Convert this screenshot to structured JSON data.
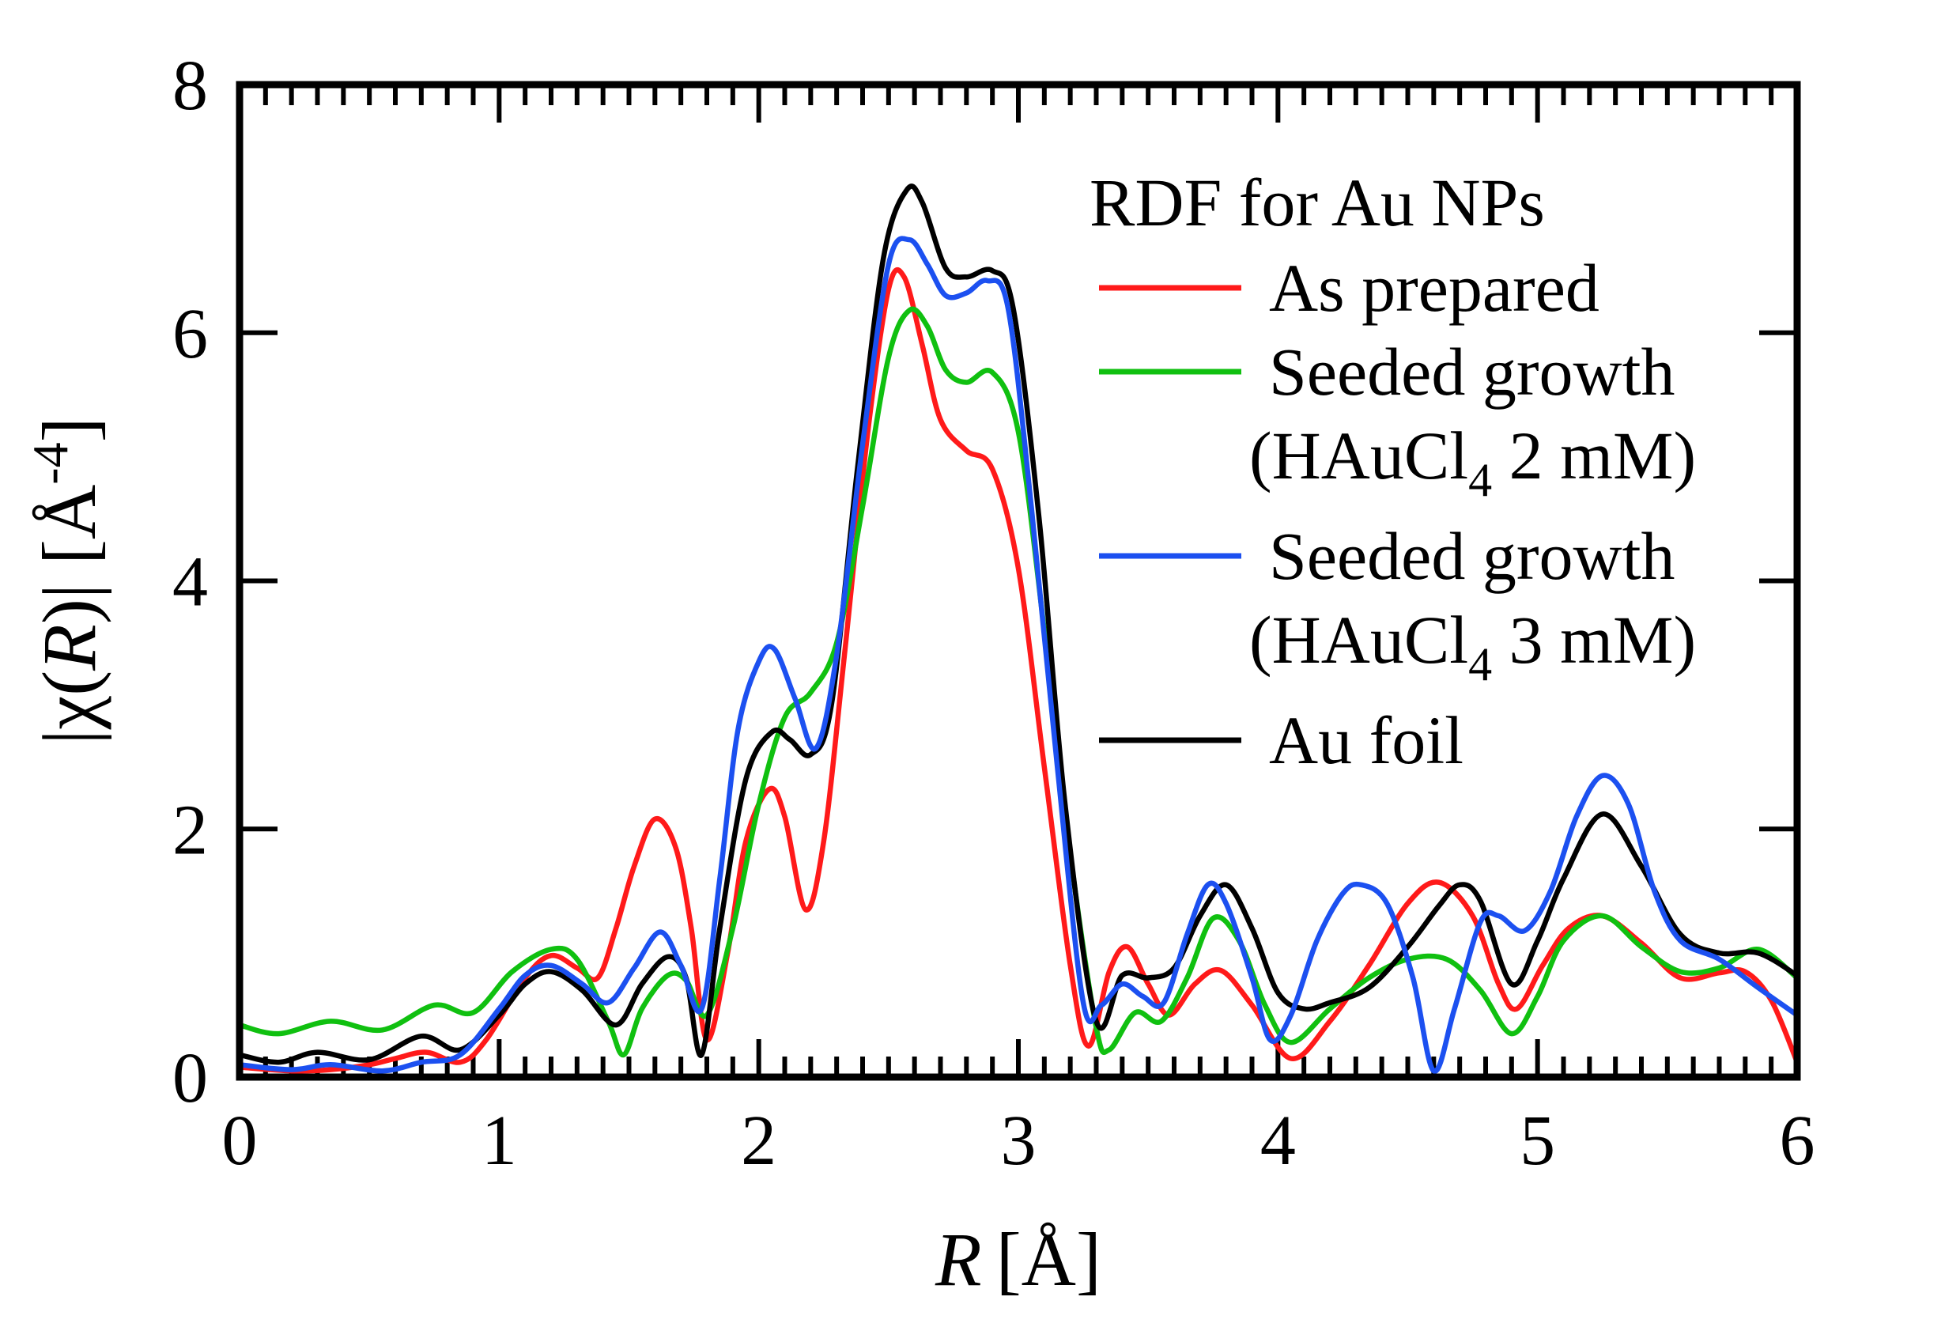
{
  "chart_data": {
    "type": "line",
    "title": "",
    "xlabel_var": "R",
    "xlabel_unit": "[Å]",
    "ylabel_pre": "|χ(",
    "ylabel_var": "R",
    "ylabel_post": ")| [Å",
    "ylabel_exp": "-4",
    "ylabel_close": "]",
    "xlim": [
      0,
      6
    ],
    "ylim": [
      0,
      8
    ],
    "x_ticks": [
      "0",
      "1",
      "2",
      "3",
      "4",
      "5",
      "6"
    ],
    "y_ticks": [
      "0",
      "2",
      "4",
      "6",
      "8"
    ],
    "grid": false,
    "legend": {
      "title": "RDF for Au NPs",
      "placement": "top-right"
    },
    "series": [
      {
        "name": "As prepared",
        "color": "#ff1a1a",
        "points": [
          [
            0,
            0.08
          ],
          [
            0.2,
            0.05
          ],
          [
            0.35,
            0.06
          ],
          [
            0.5,
            0.1
          ],
          [
            0.6,
            0.15
          ],
          [
            0.72,
            0.2
          ],
          [
            0.85,
            0.12
          ],
          [
            0.95,
            0.3
          ],
          [
            1.1,
            0.8
          ],
          [
            1.2,
            0.98
          ],
          [
            1.3,
            0.88
          ],
          [
            1.38,
            0.8
          ],
          [
            1.45,
            1.2
          ],
          [
            1.52,
            1.7
          ],
          [
            1.6,
            2.08
          ],
          [
            1.68,
            1.85
          ],
          [
            1.74,
            1.2
          ],
          [
            1.8,
            0.3
          ],
          [
            1.88,
            1.0
          ],
          [
            1.95,
            1.9
          ],
          [
            2.04,
            2.32
          ],
          [
            2.1,
            2.1
          ],
          [
            2.18,
            1.35
          ],
          [
            2.25,
            1.9
          ],
          [
            2.33,
            3.4
          ],
          [
            2.42,
            5.2
          ],
          [
            2.5,
            6.35
          ],
          [
            2.56,
            6.45
          ],
          [
            2.63,
            5.9
          ],
          [
            2.7,
            5.3
          ],
          [
            2.8,
            5.05
          ],
          [
            2.9,
            4.9
          ],
          [
            3.0,
            4.1
          ],
          [
            3.1,
            2.5
          ],
          [
            3.2,
            0.9
          ],
          [
            3.27,
            0.25
          ],
          [
            3.35,
            0.85
          ],
          [
            3.42,
            1.05
          ],
          [
            3.5,
            0.75
          ],
          [
            3.58,
            0.5
          ],
          [
            3.68,
            0.75
          ],
          [
            3.78,
            0.86
          ],
          [
            3.9,
            0.58
          ],
          [
            4.05,
            0.15
          ],
          [
            4.2,
            0.45
          ],
          [
            4.35,
            0.9
          ],
          [
            4.5,
            1.4
          ],
          [
            4.62,
            1.57
          ],
          [
            4.75,
            1.3
          ],
          [
            4.85,
            0.75
          ],
          [
            4.92,
            0.55
          ],
          [
            5.02,
            0.9
          ],
          [
            5.12,
            1.2
          ],
          [
            5.25,
            1.3
          ],
          [
            5.4,
            1.08
          ],
          [
            5.55,
            0.8
          ],
          [
            5.7,
            0.84
          ],
          [
            5.8,
            0.85
          ],
          [
            5.9,
            0.62
          ],
          [
            6.0,
            0.12
          ]
        ]
      },
      {
        "name": "Seeded growth (HAuCl4 2 mM)",
        "label_main": "Seeded growth",
        "label_sub_pre": "(HAuCl",
        "label_sub_idx": "4",
        "label_sub_post": " 2 mM)",
        "color": "#10c010",
        "points": [
          [
            0,
            0.42
          ],
          [
            0.15,
            0.35
          ],
          [
            0.35,
            0.45
          ],
          [
            0.55,
            0.38
          ],
          [
            0.75,
            0.58
          ],
          [
            0.9,
            0.52
          ],
          [
            1.05,
            0.85
          ],
          [
            1.2,
            1.03
          ],
          [
            1.3,
            0.95
          ],
          [
            1.42,
            0.45
          ],
          [
            1.48,
            0.18
          ],
          [
            1.55,
            0.55
          ],
          [
            1.65,
            0.82
          ],
          [
            1.72,
            0.78
          ],
          [
            1.8,
            0.5
          ],
          [
            1.9,
            1.2
          ],
          [
            2.0,
            2.2
          ],
          [
            2.1,
            2.9
          ],
          [
            2.2,
            3.1
          ],
          [
            2.3,
            3.5
          ],
          [
            2.4,
            4.6
          ],
          [
            2.5,
            5.8
          ],
          [
            2.58,
            6.18
          ],
          [
            2.65,
            6.05
          ],
          [
            2.72,
            5.7
          ],
          [
            2.8,
            5.6
          ],
          [
            2.9,
            5.68
          ],
          [
            3.0,
            5.2
          ],
          [
            3.1,
            3.6
          ],
          [
            3.2,
            1.8
          ],
          [
            3.3,
            0.4
          ],
          [
            3.35,
            0.22
          ],
          [
            3.45,
            0.52
          ],
          [
            3.55,
            0.45
          ],
          [
            3.65,
            0.8
          ],
          [
            3.75,
            1.28
          ],
          [
            3.85,
            1.1
          ],
          [
            3.95,
            0.58
          ],
          [
            4.05,
            0.28
          ],
          [
            4.2,
            0.55
          ],
          [
            4.35,
            0.8
          ],
          [
            4.5,
            0.95
          ],
          [
            4.65,
            0.95
          ],
          [
            4.78,
            0.7
          ],
          [
            4.9,
            0.35
          ],
          [
            5.0,
            0.65
          ],
          [
            5.1,
            1.1
          ],
          [
            5.25,
            1.3
          ],
          [
            5.4,
            1.05
          ],
          [
            5.55,
            0.85
          ],
          [
            5.7,
            0.88
          ],
          [
            5.85,
            1.03
          ],
          [
            6.0,
            0.8
          ]
        ]
      },
      {
        "name": "Seeded growth (HAuCl4 3 mM)",
        "label_main": "Seeded growth",
        "label_sub_pre": "(HAuCl",
        "label_sub_idx": "4",
        "label_sub_post": " 3 mM)",
        "color": "#1c50f0",
        "points": [
          [
            0,
            0.1
          ],
          [
            0.2,
            0.06
          ],
          [
            0.35,
            0.1
          ],
          [
            0.55,
            0.05
          ],
          [
            0.7,
            0.12
          ],
          [
            0.85,
            0.18
          ],
          [
            1.0,
            0.55
          ],
          [
            1.1,
            0.82
          ],
          [
            1.2,
            0.9
          ],
          [
            1.32,
            0.75
          ],
          [
            1.42,
            0.6
          ],
          [
            1.52,
            0.88
          ],
          [
            1.62,
            1.17
          ],
          [
            1.7,
            0.9
          ],
          [
            1.78,
            0.55
          ],
          [
            1.85,
            1.6
          ],
          [
            1.92,
            2.8
          ],
          [
            2.0,
            3.35
          ],
          [
            2.06,
            3.45
          ],
          [
            2.14,
            3.05
          ],
          [
            2.22,
            2.65
          ],
          [
            2.3,
            3.4
          ],
          [
            2.4,
            5.1
          ],
          [
            2.5,
            6.55
          ],
          [
            2.58,
            6.75
          ],
          [
            2.65,
            6.55
          ],
          [
            2.72,
            6.3
          ],
          [
            2.8,
            6.32
          ],
          [
            2.88,
            6.42
          ],
          [
            2.96,
            6.2
          ],
          [
            3.05,
            4.6
          ],
          [
            3.15,
            2.5
          ],
          [
            3.25,
            0.6
          ],
          [
            3.32,
            0.58
          ],
          [
            3.4,
            0.75
          ],
          [
            3.48,
            0.65
          ],
          [
            3.56,
            0.6
          ],
          [
            3.65,
            1.15
          ],
          [
            3.73,
            1.55
          ],
          [
            3.8,
            1.4
          ],
          [
            3.9,
            0.8
          ],
          [
            3.97,
            0.3
          ],
          [
            4.05,
            0.5
          ],
          [
            4.15,
            1.1
          ],
          [
            4.25,
            1.48
          ],
          [
            4.32,
            1.55
          ],
          [
            4.42,
            1.4
          ],
          [
            4.52,
            0.8
          ],
          [
            4.6,
            0.05
          ],
          [
            4.68,
            0.55
          ],
          [
            4.78,
            1.25
          ],
          [
            4.85,
            1.3
          ],
          [
            4.95,
            1.18
          ],
          [
            5.05,
            1.5
          ],
          [
            5.15,
            2.1
          ],
          [
            5.25,
            2.43
          ],
          [
            5.35,
            2.2
          ],
          [
            5.45,
            1.5
          ],
          [
            5.55,
            1.1
          ],
          [
            5.7,
            0.95
          ],
          [
            5.85,
            0.72
          ],
          [
            6.0,
            0.5
          ]
        ]
      },
      {
        "name": "Au foil",
        "color": "#000000",
        "points": [
          [
            0,
            0.18
          ],
          [
            0.15,
            0.12
          ],
          [
            0.3,
            0.2
          ],
          [
            0.5,
            0.14
          ],
          [
            0.7,
            0.33
          ],
          [
            0.85,
            0.22
          ],
          [
            1.0,
            0.5
          ],
          [
            1.1,
            0.75
          ],
          [
            1.2,
            0.85
          ],
          [
            1.32,
            0.7
          ],
          [
            1.45,
            0.42
          ],
          [
            1.55,
            0.75
          ],
          [
            1.65,
            0.97
          ],
          [
            1.72,
            0.8
          ],
          [
            1.78,
            0.18
          ],
          [
            1.85,
            1.2
          ],
          [
            1.95,
            2.4
          ],
          [
            2.05,
            2.78
          ],
          [
            2.12,
            2.72
          ],
          [
            2.2,
            2.6
          ],
          [
            2.28,
            3.0
          ],
          [
            2.38,
            4.9
          ],
          [
            2.48,
            6.6
          ],
          [
            2.57,
            7.15
          ],
          [
            2.63,
            7.05
          ],
          [
            2.72,
            6.52
          ],
          [
            2.8,
            6.45
          ],
          [
            2.9,
            6.5
          ],
          [
            2.98,
            6.2
          ],
          [
            3.08,
            4.5
          ],
          [
            3.18,
            2.2
          ],
          [
            3.3,
            0.45
          ],
          [
            3.4,
            0.82
          ],
          [
            3.5,
            0.8
          ],
          [
            3.6,
            0.88
          ],
          [
            3.7,
            1.3
          ],
          [
            3.8,
            1.55
          ],
          [
            3.9,
            1.2
          ],
          [
            4.0,
            0.68
          ],
          [
            4.1,
            0.55
          ],
          [
            4.2,
            0.6
          ],
          [
            4.35,
            0.72
          ],
          [
            4.5,
            1.05
          ],
          [
            4.62,
            1.38
          ],
          [
            4.7,
            1.55
          ],
          [
            4.78,
            1.42
          ],
          [
            4.9,
            0.75
          ],
          [
            5.0,
            1.1
          ],
          [
            5.1,
            1.6
          ],
          [
            5.25,
            2.12
          ],
          [
            5.4,
            1.7
          ],
          [
            5.55,
            1.15
          ],
          [
            5.7,
            1.0
          ],
          [
            5.85,
            1.0
          ],
          [
            6.0,
            0.82
          ]
        ]
      }
    ]
  }
}
